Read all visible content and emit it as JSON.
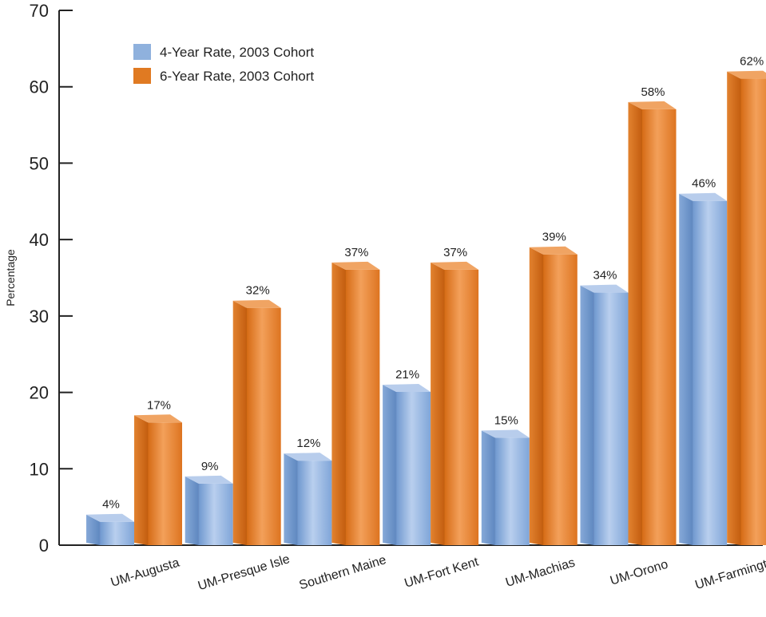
{
  "chart_data": {
    "type": "bar",
    "categories": [
      "UM-Augusta",
      "UM-Presque Isle",
      "Southern Maine",
      "UM-Fort Kent",
      "UM-Machias",
      "UM-Orono",
      "UM-Farmington"
    ],
    "series": [
      {
        "name": "4-Year Rate, 2003 Cohort",
        "values": [
          4,
          9,
          12,
          21,
          15,
          34,
          46
        ],
        "labels": [
          "4%",
          "9%",
          "12%",
          "21%",
          "15%",
          "34%",
          "46%"
        ],
        "color": "#8fb1dd"
      },
      {
        "name": "6-Year Rate, 2003 Cohort",
        "values": [
          17,
          32,
          37,
          37,
          39,
          58,
          62
        ],
        "labels": [
          "17%",
          "32%",
          "37%",
          "37%",
          "39%",
          "58%",
          "62%"
        ],
        "color": "#e07a22"
      }
    ],
    "ylabel": "Percentage",
    "xlabel": "",
    "ylim": [
      0,
      70
    ],
    "yticks": [
      "0",
      "10",
      "20",
      "30",
      "40",
      "50",
      "60",
      "70"
    ],
    "grid": false,
    "legend_position": "top-left",
    "style": "3d-columns"
  }
}
